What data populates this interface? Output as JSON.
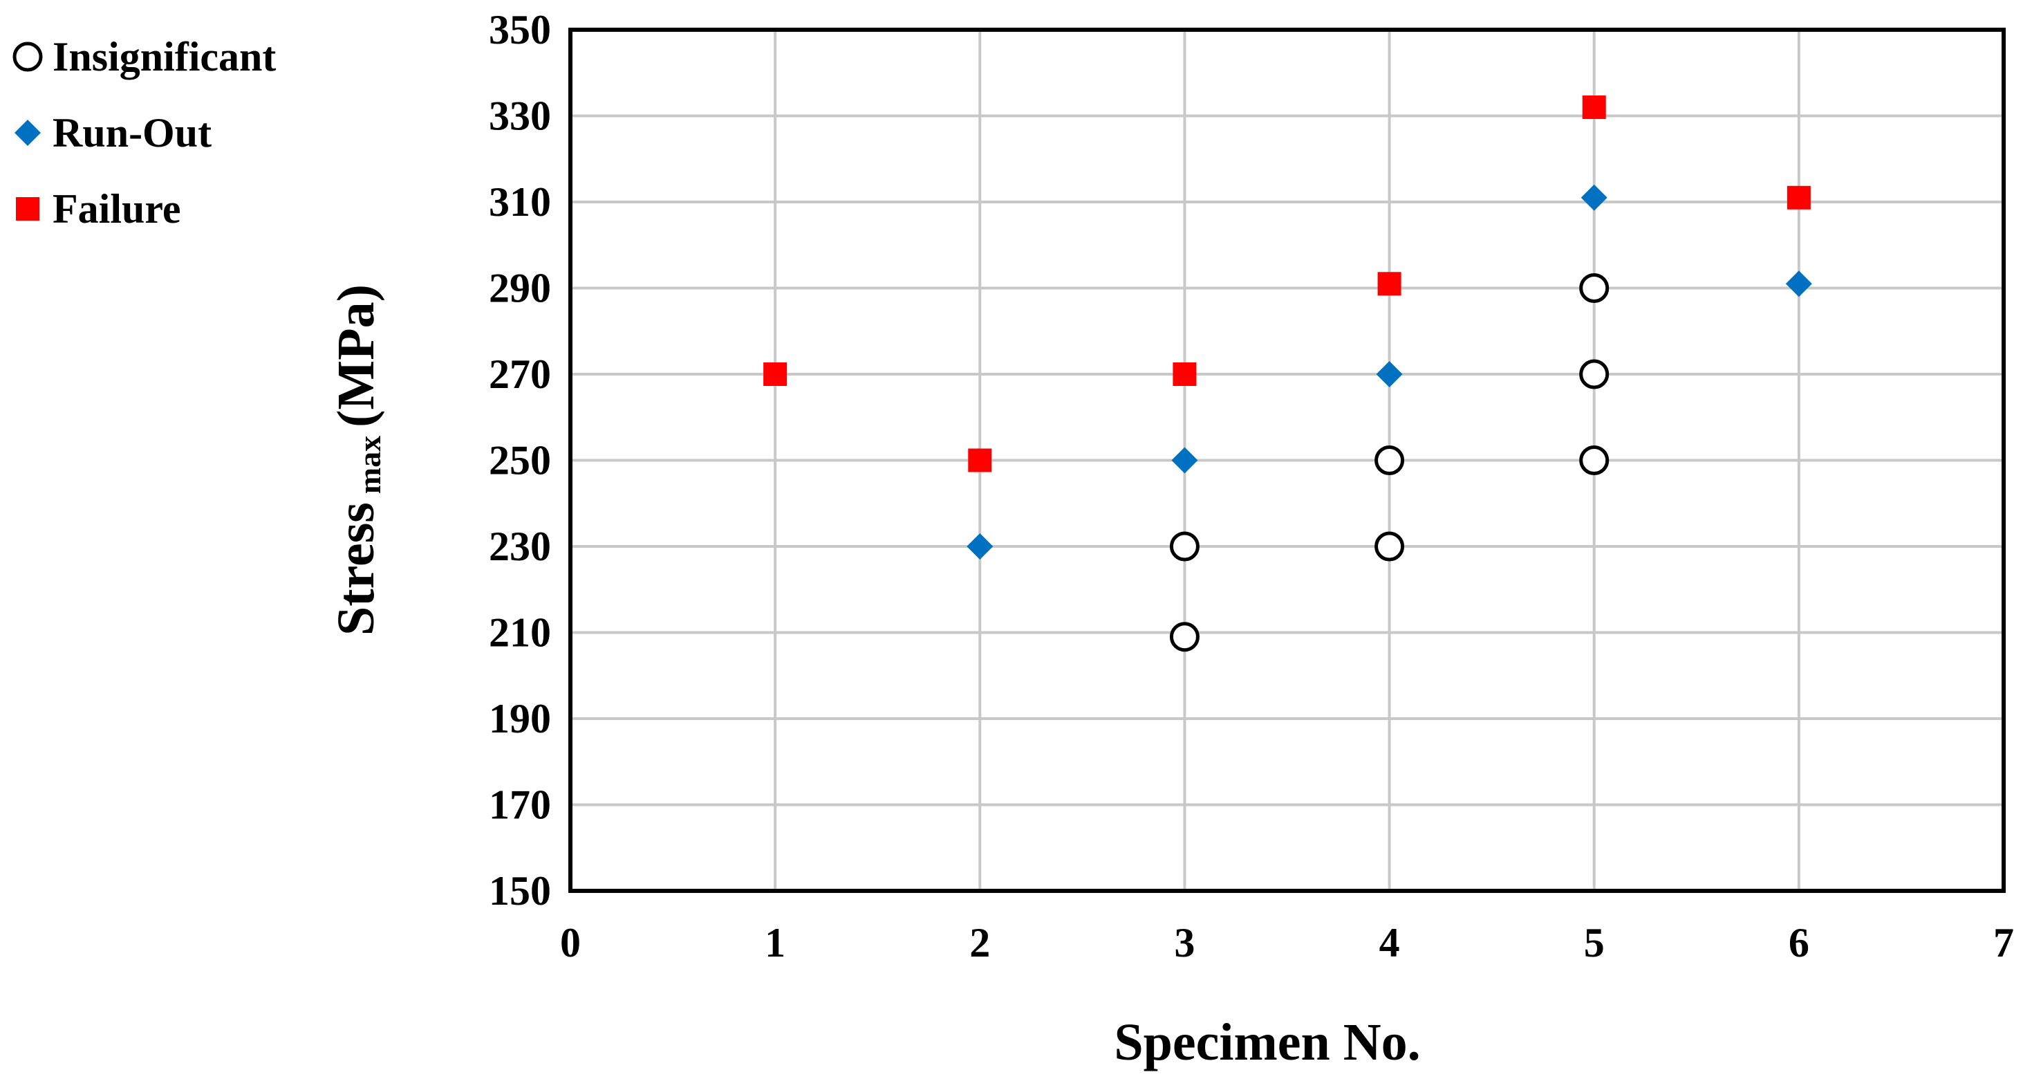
{
  "chart_data": {
    "type": "scatter",
    "title": "",
    "xlabel": "Specimen No.",
    "ylabel": {
      "main": "Stress",
      "subscript": "max",
      "unit": "(MPa)"
    },
    "xlim": [
      0,
      7
    ],
    "ylim": [
      150,
      350
    ],
    "x_ticks": [
      "0",
      "1",
      "2",
      "3",
      "4",
      "5",
      "6",
      "7"
    ],
    "y_ticks": [
      "150",
      "170",
      "190",
      "210",
      "230",
      "250",
      "270",
      "290",
      "310",
      "330",
      "350"
    ],
    "grid": true,
    "legend_position": "left-top",
    "series": [
      {
        "name": "Insignificant",
        "marker": "circle-open",
        "color": "#000000",
        "points": [
          {
            "x": 3,
            "y": 209
          },
          {
            "x": 3,
            "y": 230
          },
          {
            "x": 4,
            "y": 230
          },
          {
            "x": 4,
            "y": 250
          },
          {
            "x": 5,
            "y": 250
          },
          {
            "x": 5,
            "y": 270
          },
          {
            "x": 5,
            "y": 290
          }
        ]
      },
      {
        "name": "Run-Out",
        "marker": "diamond",
        "color": "#0070C0",
        "points": [
          {
            "x": 2,
            "y": 230
          },
          {
            "x": 3,
            "y": 250
          },
          {
            "x": 4,
            "y": 270
          },
          {
            "x": 5,
            "y": 311
          },
          {
            "x": 6,
            "y": 291
          }
        ]
      },
      {
        "name": "Failure",
        "marker": "square",
        "color": "#FF0000",
        "points": [
          {
            "x": 1,
            "y": 270
          },
          {
            "x": 2,
            "y": 250
          },
          {
            "x": 3,
            "y": 270
          },
          {
            "x": 4,
            "y": 291
          },
          {
            "x": 5,
            "y": 332
          },
          {
            "x": 6,
            "y": 311
          }
        ]
      }
    ]
  }
}
